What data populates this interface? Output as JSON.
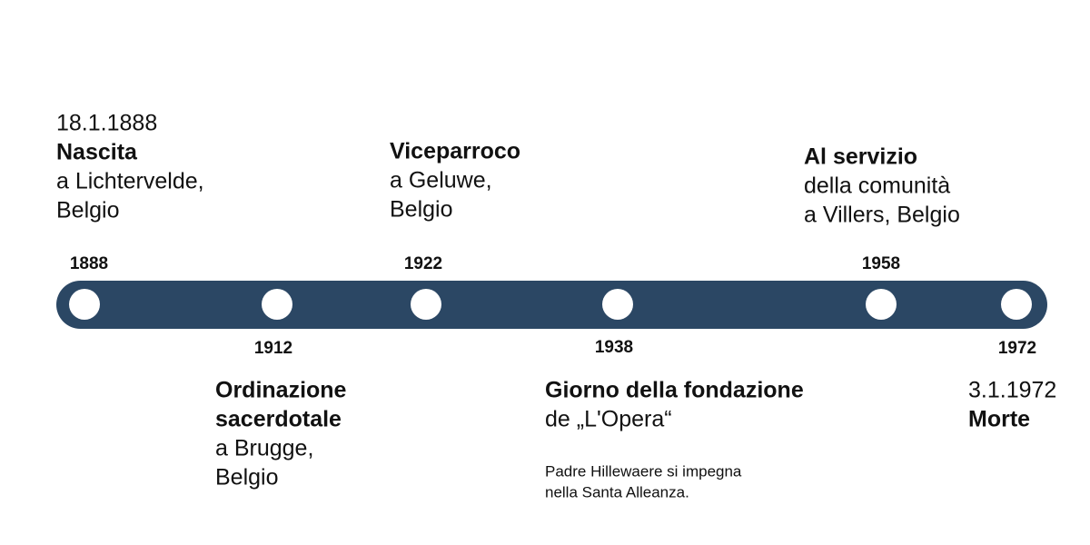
{
  "events": [
    {
      "year": "1888",
      "date": "18.1.1888",
      "title": [
        "Nascita"
      ],
      "text": [
        "a Lichtervelde,",
        "Belgio"
      ]
    },
    {
      "year": "1912",
      "title": [
        "Ordinazione",
        "sacerdotale"
      ],
      "text": [
        "a Brugge,",
        "Belgio"
      ]
    },
    {
      "year": "1922",
      "title": [
        "Viceparroco"
      ],
      "text": [
        "a Geluwe,",
        "Belgio"
      ]
    },
    {
      "year": "1938",
      "title": [
        "Giorno della fondazione"
      ],
      "text": [
        "de „L'Opera“"
      ],
      "note": [
        "Padre Hillewaere si impegna",
        "nella Santa Alleanza."
      ]
    },
    {
      "year": "1958",
      "title": [
        "Al servizio"
      ],
      "text": [
        "della comunità",
        "a Villers, Belgio"
      ]
    },
    {
      "year": "1972",
      "date": "3.1.1972",
      "title": [
        "Morte"
      ]
    }
  ]
}
